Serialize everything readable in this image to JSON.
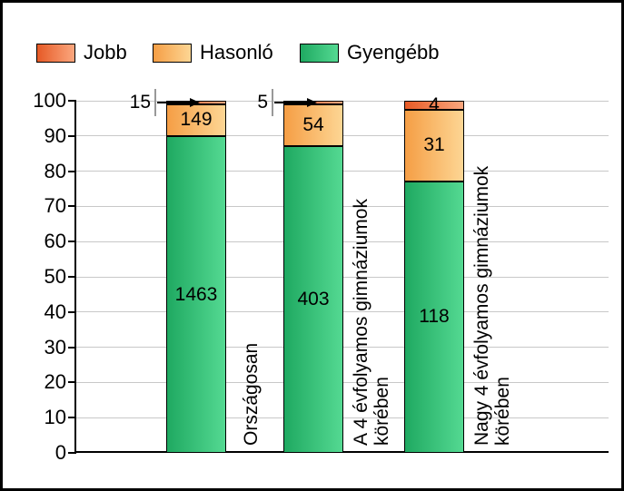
{
  "legend": {
    "items": [
      {
        "label": "Jobb",
        "color_dark": "#e65a26",
        "color_light": "#fba77e"
      },
      {
        "label": "Hasonló",
        "color_dark": "#f59e45",
        "color_light": "#fdd694"
      },
      {
        "label": "Gyengébb",
        "color_dark": "#1fa961",
        "color_light": "#54d992"
      }
    ]
  },
  "colors": {
    "gridline": "#c8c8c8",
    "axis": "#000000",
    "whisker": "#999999",
    "arrow": "#000000",
    "background": "#ffffff",
    "frame_border": "#000000"
  },
  "chart_data": {
    "type": "bar",
    "stacked": true,
    "unit_note": "bars show percentage shares 0-100, labels show counts",
    "categories": [
      "Országosan",
      "A 4 évfolyamos gimnáziumok körében",
      "Nagy 4 évfolyamos gimnáziumok körében"
    ],
    "category_lines": [
      [
        "Országosan"
      ],
      [
        "A 4 évfolyamos gimnáziumok",
        "körében"
      ],
      [
        "Nagy 4 évfolyamos gimnáziumok",
        "körében"
      ]
    ],
    "series": [
      {
        "name": "Jobb",
        "counts": [
          15,
          5,
          4
        ],
        "percents": [
          0.92,
          1.08,
          2.61
        ]
      },
      {
        "name": "Hasonló",
        "counts": [
          149,
          54,
          31
        ],
        "percents": [
          9.16,
          11.69,
          20.26
        ]
      },
      {
        "name": "Gyengébb",
        "counts": [
          1463,
          403,
          118
        ],
        "percents": [
          89.92,
          87.23,
          77.12
        ]
      }
    ],
    "value_labels": {
      "inside": [
        [
          "149",
          "1463"
        ],
        [
          "54",
          "403"
        ],
        [
          "4",
          "31",
          "118"
        ]
      ],
      "callouts": [
        {
          "category_index": 0,
          "text": "15"
        },
        {
          "category_index": 1,
          "text": "5"
        }
      ]
    },
    "ylim": [
      0,
      100
    ],
    "yticks": [
      0,
      10,
      20,
      30,
      40,
      50,
      60,
      70,
      80,
      90,
      100
    ],
    "grid": true,
    "legend_position": "top",
    "title": ""
  }
}
